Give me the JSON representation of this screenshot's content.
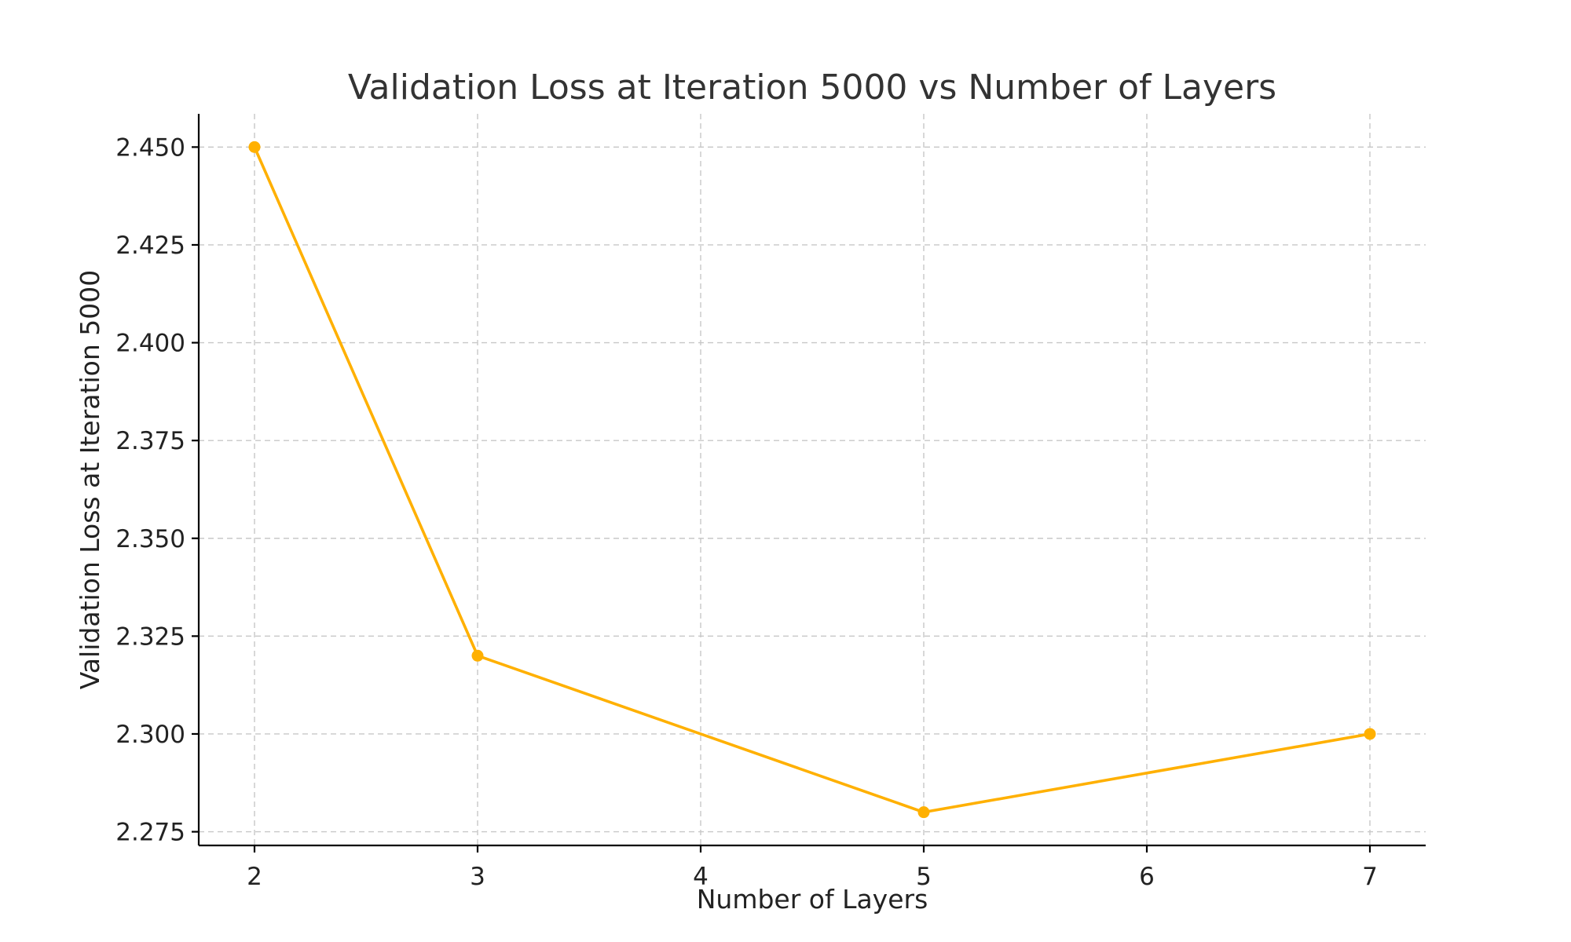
{
  "chart_data": {
    "type": "line",
    "title": "Validation Loss at Iteration 5000 vs Number of Layers",
    "xlabel": "Number of Layers",
    "ylabel": "Validation Loss at Iteration 5000",
    "x": [
      2,
      3,
      5,
      7
    ],
    "series": [
      {
        "values": [
          2.45,
          2.32,
          2.28,
          2.3
        ],
        "color": "#FFB000",
        "marker": "circle"
      }
    ],
    "xticks": [
      "2",
      "3",
      "4",
      "5",
      "6",
      "7"
    ],
    "yticks": [
      "2.275",
      "2.300",
      "2.325",
      "2.350",
      "2.375",
      "2.400",
      "2.425",
      "2.450"
    ],
    "xlim": [
      1.75,
      7.25
    ],
    "ylim": [
      2.2715,
      2.4585
    ],
    "grid": true,
    "grid_style": "dashed"
  }
}
